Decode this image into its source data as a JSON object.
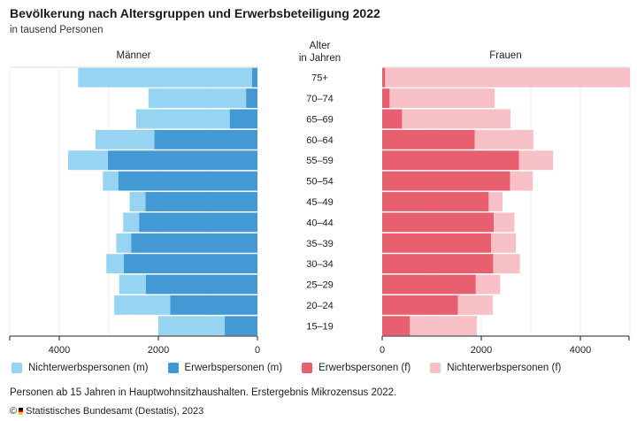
{
  "header": {
    "title": "Bevölkerung nach Altersgruppen und Erwerbsbeteiligung 2022",
    "subtitle": "in tausend Personen"
  },
  "chart_data": {
    "type": "bar",
    "orientation": "horizontal-population-pyramid",
    "left_panel_title": "Männer",
    "right_panel_title": "Frauen",
    "center_axis_title": "Alter\nin Jahren",
    "categories": [
      "75+",
      "70–74",
      "65–69",
      "60–64",
      "55–59",
      "50–54",
      "45–49",
      "40–44",
      "35–39",
      "30–34",
      "25–29",
      "20–24",
      "15–19"
    ],
    "xlim": [
      0,
      5000
    ],
    "left_ticks": [
      4000,
      2000,
      0
    ],
    "right_ticks": [
      0,
      2000,
      4000
    ],
    "series": [
      {
        "name": "Nichterwerbspersonen (m)",
        "side": "left",
        "color": "#96d4f2",
        "values": [
          3510,
          1970,
          1890,
          1190,
          800,
          310,
          320,
          320,
          300,
          350,
          540,
          1130,
          1340
        ]
      },
      {
        "name": "Erwerbspersonen (m)",
        "side": "left",
        "color": "#4399d3",
        "values": [
          110,
          230,
          560,
          2080,
          3020,
          2810,
          2260,
          2390,
          2550,
          2700,
          2250,
          1760,
          660
        ]
      },
      {
        "name": "Erwerbspersonen (f)",
        "side": "right",
        "color": "#e8606f",
        "values": [
          60,
          150,
          400,
          1870,
          2760,
          2580,
          2150,
          2250,
          2200,
          2240,
          1890,
          1530,
          560
        ]
      },
      {
        "name": "Nichterwerbspersonen (f)",
        "side": "right",
        "color": "#f7c0c6",
        "values": [
          4940,
          2120,
          2190,
          1180,
          690,
          460,
          280,
          420,
          500,
          540,
          490,
          700,
          1350
        ]
      }
    ]
  },
  "legend": [
    {
      "label": "Nichterwerbspersonen (m)",
      "color": "#96d4f2"
    },
    {
      "label": "Erwerbspersonen (m)",
      "color": "#4399d3"
    },
    {
      "label": "Erwerbspersonen (f)",
      "color": "#e8606f"
    },
    {
      "label": "Nichterwerbspersonen (f)",
      "color": "#f7c0c6"
    }
  ],
  "footnote": "Personen ab 15 Jahren in Hauptwohnsitzhaushalten. Erstergebnis Mikrozensus 2022.",
  "source": {
    "prefix": "©",
    "text": "Statistisches Bundesamt (Destatis), 2023",
    "logo_colors": [
      "#000000",
      "#dd0000",
      "#ffcc00"
    ]
  }
}
